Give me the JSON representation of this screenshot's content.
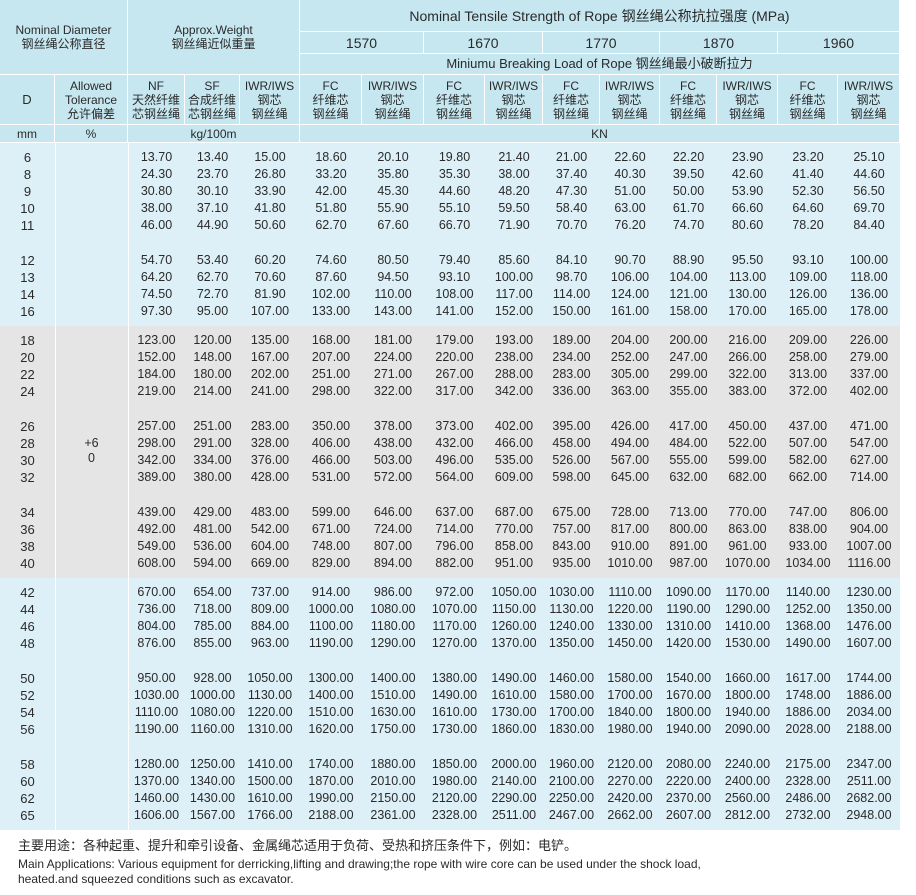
{
  "header": {
    "diameter": [
      "Nominal Diameter",
      "钢丝绳公称直径"
    ],
    "weight": [
      "Approx.Weight",
      "钢丝绳近似重量"
    ],
    "strength_title": "Nominal Tensile Strength of Rope 钢丝绳公称抗拉强度 (MPa)",
    "grades": [
      "1570",
      "1670",
      "1770",
      "1870",
      "1960"
    ],
    "breaking": "Miniumu Breaking Load of Rope 钢丝绳最小破断拉力",
    "columns": [
      [
        "D"
      ],
      [
        "Allowed",
        "Tolerance",
        "允许偏差"
      ],
      [
        "NF",
        "天然纤维",
        "芯钢丝绳"
      ],
      [
        "SF",
        "合成纤维",
        "芯钢丝绳"
      ],
      [
        "IWR/IWS",
        "钢芯",
        "钢丝绳"
      ],
      [
        "FC",
        "纤维芯",
        "钢丝绳"
      ],
      [
        "IWR/IWS",
        "钢芯",
        "钢丝绳"
      ],
      [
        "FC",
        "纤维芯",
        "钢丝绳"
      ],
      [
        "IWR/IWS",
        "钢芯",
        "钢丝绳"
      ],
      [
        "FC",
        "纤维芯",
        "钢丝绳"
      ],
      [
        "IWR/IWS",
        "钢芯",
        "钢丝绳"
      ],
      [
        "FC",
        "纤维芯",
        "钢丝绳"
      ],
      [
        "IWR/IWS",
        "钢芯",
        "钢丝绳"
      ],
      [
        "FC",
        "纤维芯",
        "钢丝绳"
      ],
      [
        "IWR/IWS",
        "钢芯",
        "钢丝绳"
      ]
    ],
    "units": [
      "mm",
      "%",
      "kg/100m",
      "KN"
    ]
  },
  "tolerance": [
    "+6",
    "0"
  ],
  "groups": [
    [
      [
        [
          "6",
          "13.70",
          "13.40",
          "15.00",
          "18.60",
          "20.10",
          "19.80",
          "21.40",
          "21.00",
          "22.60",
          "22.20",
          "23.90",
          "23.20",
          "25.10"
        ],
        [
          "8",
          "24.30",
          "23.70",
          "26.80",
          "33.20",
          "35.80",
          "35.30",
          "38.00",
          "37.40",
          "40.30",
          "39.50",
          "42.60",
          "41.40",
          "44.60"
        ],
        [
          "9",
          "30.80",
          "30.10",
          "33.90",
          "42.00",
          "45.30",
          "44.60",
          "48.20",
          "47.30",
          "51.00",
          "50.00",
          "53.90",
          "52.30",
          "56.50"
        ],
        [
          "10",
          "38.00",
          "37.10",
          "41.80",
          "51.80",
          "55.90",
          "55.10",
          "59.50",
          "58.40",
          "63.00",
          "61.70",
          "66.60",
          "64.60",
          "69.70"
        ],
        [
          "11",
          "46.00",
          "44.90",
          "50.60",
          "62.70",
          "67.60",
          "66.70",
          "71.90",
          "70.70",
          "76.20",
          "74.70",
          "80.60",
          "78.20",
          "84.40"
        ]
      ],
      [
        [
          "12",
          "54.70",
          "53.40",
          "60.20",
          "74.60",
          "80.50",
          "79.40",
          "85.60",
          "84.10",
          "90.70",
          "88.90",
          "95.50",
          "93.10",
          "100.00"
        ],
        [
          "13",
          "64.20",
          "62.70",
          "70.60",
          "87.60",
          "94.50",
          "93.10",
          "100.00",
          "98.70",
          "106.00",
          "104.00",
          "113.00",
          "109.00",
          "118.00"
        ],
        [
          "14",
          "74.50",
          "72.70",
          "81.90",
          "102.00",
          "110.00",
          "108.00",
          "117.00",
          "114.00",
          "124.00",
          "121.00",
          "130.00",
          "126.00",
          "136.00"
        ],
        [
          "16",
          "97.30",
          "95.00",
          "107.00",
          "133.00",
          "143.00",
          "141.00",
          "152.00",
          "150.00",
          "161.00",
          "158.00",
          "170.00",
          "165.00",
          "178.00"
        ]
      ]
    ],
    [
      [
        [
          "18",
          "123.00",
          "120.00",
          "135.00",
          "168.00",
          "181.00",
          "179.00",
          "193.00",
          "189.00",
          "204.00",
          "200.00",
          "216.00",
          "209.00",
          "226.00"
        ],
        [
          "20",
          "152.00",
          "148.00",
          "167.00",
          "207.00",
          "224.00",
          "220.00",
          "238.00",
          "234.00",
          "252.00",
          "247.00",
          "266.00",
          "258.00",
          "279.00"
        ],
        [
          "22",
          "184.00",
          "180.00",
          "202.00",
          "251.00",
          "271.00",
          "267.00",
          "288.00",
          "283.00",
          "305.00",
          "299.00",
          "322.00",
          "313.00",
          "337.00"
        ],
        [
          "24",
          "219.00",
          "214.00",
          "241.00",
          "298.00",
          "322.00",
          "317.00",
          "342.00",
          "336.00",
          "363.00",
          "355.00",
          "383.00",
          "372.00",
          "402.00"
        ]
      ],
      [
        [
          "26",
          "257.00",
          "251.00",
          "283.00",
          "350.00",
          "378.00",
          "373.00",
          "402.00",
          "395.00",
          "426.00",
          "417.00",
          "450.00",
          "437.00",
          "471.00"
        ],
        [
          "28",
          "298.00",
          "291.00",
          "328.00",
          "406.00",
          "438.00",
          "432.00",
          "466.00",
          "458.00",
          "494.00",
          "484.00",
          "522.00",
          "507.00",
          "547.00"
        ],
        [
          "30",
          "342.00",
          "334.00",
          "376.00",
          "466.00",
          "503.00",
          "496.00",
          "535.00",
          "526.00",
          "567.00",
          "555.00",
          "599.00",
          "582.00",
          "627.00"
        ],
        [
          "32",
          "389.00",
          "380.00",
          "428.00",
          "531.00",
          "572.00",
          "564.00",
          "609.00",
          "598.00",
          "645.00",
          "632.00",
          "682.00",
          "662.00",
          "714.00"
        ]
      ],
      [
        [
          "34",
          "439.00",
          "429.00",
          "483.00",
          "599.00",
          "646.00",
          "637.00",
          "687.00",
          "675.00",
          "728.00",
          "713.00",
          "770.00",
          "747.00",
          "806.00"
        ],
        [
          "36",
          "492.00",
          "481.00",
          "542.00",
          "671.00",
          "724.00",
          "714.00",
          "770.00",
          "757.00",
          "817.00",
          "800.00",
          "863.00",
          "838.00",
          "904.00"
        ],
        [
          "38",
          "549.00",
          "536.00",
          "604.00",
          "748.00",
          "807.00",
          "796.00",
          "858.00",
          "843.00",
          "910.00",
          "891.00",
          "961.00",
          "933.00",
          "1007.00"
        ],
        [
          "40",
          "608.00",
          "594.00",
          "669.00",
          "829.00",
          "894.00",
          "882.00",
          "951.00",
          "935.00",
          "1010.00",
          "987.00",
          "1070.00",
          "1034.00",
          "1116.00"
        ]
      ]
    ],
    [
      [
        [
          "42",
          "670.00",
          "654.00",
          "737.00",
          "914.00",
          "986.00",
          "972.00",
          "1050.00",
          "1030.00",
          "1110.00",
          "1090.00",
          "1170.00",
          "1140.00",
          "1230.00"
        ],
        [
          "44",
          "736.00",
          "718.00",
          "809.00",
          "1000.00",
          "1080.00",
          "1070.00",
          "1150.00",
          "1130.00",
          "1220.00",
          "1190.00",
          "1290.00",
          "1252.00",
          "1350.00"
        ],
        [
          "46",
          "804.00",
          "785.00",
          "884.00",
          "1100.00",
          "1180.00",
          "1170.00",
          "1260.00",
          "1240.00",
          "1330.00",
          "1310.00",
          "1410.00",
          "1368.00",
          "1476.00"
        ],
        [
          "48",
          "876.00",
          "855.00",
          "963.00",
          "1190.00",
          "1290.00",
          "1270.00",
          "1370.00",
          "1350.00",
          "1450.00",
          "1420.00",
          "1530.00",
          "1490.00",
          "1607.00"
        ]
      ],
      [
        [
          "50",
          "950.00",
          "928.00",
          "1050.00",
          "1300.00",
          "1400.00",
          "1380.00",
          "1490.00",
          "1460.00",
          "1580.00",
          "1540.00",
          "1660.00",
          "1617.00",
          "1744.00"
        ],
        [
          "52",
          "1030.00",
          "1000.00",
          "1130.00",
          "1400.00",
          "1510.00",
          "1490.00",
          "1610.00",
          "1580.00",
          "1700.00",
          "1670.00",
          "1800.00",
          "1748.00",
          "1886.00"
        ],
        [
          "54",
          "1110.00",
          "1080.00",
          "1220.00",
          "1510.00",
          "1630.00",
          "1610.00",
          "1730.00",
          "1700.00",
          "1840.00",
          "1800.00",
          "1940.00",
          "1886.00",
          "2034.00"
        ],
        [
          "56",
          "1190.00",
          "1160.00",
          "1310.00",
          "1620.00",
          "1750.00",
          "1730.00",
          "1860.00",
          "1830.00",
          "1980.00",
          "1940.00",
          "2090.00",
          "2028.00",
          "2188.00"
        ]
      ],
      [
        [
          "58",
          "1280.00",
          "1250.00",
          "1410.00",
          "1740.00",
          "1880.00",
          "1850.00",
          "2000.00",
          "1960.00",
          "2120.00",
          "2080.00",
          "2240.00",
          "2175.00",
          "2347.00"
        ],
        [
          "60",
          "1370.00",
          "1340.00",
          "1500.00",
          "1870.00",
          "2010.00",
          "1980.00",
          "2140.00",
          "2100.00",
          "2270.00",
          "2220.00",
          "2400.00",
          "2328.00",
          "2511.00"
        ],
        [
          "62",
          "1460.00",
          "1430.00",
          "1610.00",
          "1990.00",
          "2150.00",
          "2120.00",
          "2290.00",
          "2250.00",
          "2420.00",
          "2370.00",
          "2560.00",
          "2486.00",
          "2682.00"
        ],
        [
          "65",
          "1606.00",
          "1567.00",
          "1766.00",
          "2188.00",
          "2361.00",
          "2328.00",
          "2511.00",
          "2467.00",
          "2662.00",
          "2607.00",
          "2812.00",
          "2732.00",
          "2948.00"
        ]
      ]
    ]
  ],
  "footer": {
    "zh": "主要用途：各种起重、提升和牵引设备、金属绳芯适用于负荷、受热和挤压条件下，例如：电铲。",
    "en": [
      "Main Applications: Various equipment for derricking,lifting and drawing;the rope with wire core can be used under the shock load,",
      "heated.and squeezed conditions such as excavator."
    ]
  }
}
